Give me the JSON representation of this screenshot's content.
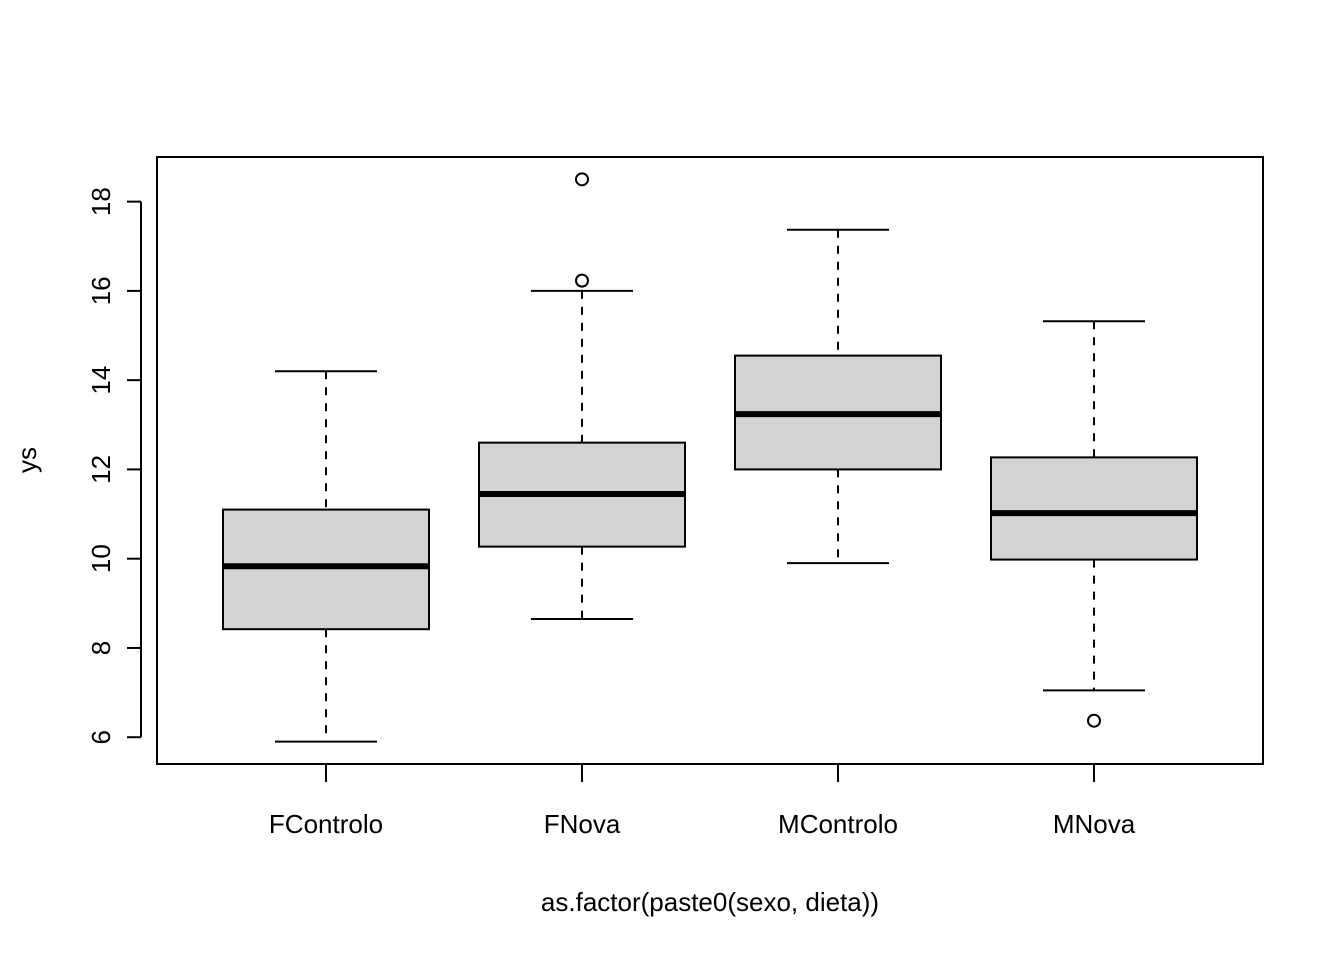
{
  "chart_data": {
    "type": "boxplot",
    "xlabel": "as.factor(paste0(sexo, dieta))",
    "ylabel": "ys",
    "ylim": [
      5.4,
      19.0
    ],
    "yticks": [
      "6",
      "8",
      "10",
      "12",
      "14",
      "16",
      "18"
    ],
    "grid": false,
    "box_fill": "#d3d3d3",
    "categories": [
      "FControlo",
      "FNova",
      "MControlo",
      "MNova"
    ],
    "boxes": [
      {
        "category": "FControlo",
        "whisker_low": 5.9,
        "q1": 8.42,
        "median": 9.83,
        "q3": 11.1,
        "whisker_high": 14.2,
        "outliers": []
      },
      {
        "category": "FNova",
        "whisker_low": 8.65,
        "q1": 10.27,
        "median": 11.45,
        "q3": 12.6,
        "whisker_high": 16.0,
        "outliers": [
          16.23,
          18.5
        ]
      },
      {
        "category": "MControlo",
        "whisker_low": 9.9,
        "q1": 12.0,
        "median": 13.24,
        "q3": 14.55,
        "whisker_high": 17.37,
        "outliers": []
      },
      {
        "category": "MNova",
        "whisker_low": 7.05,
        "q1": 9.98,
        "median": 11.02,
        "q3": 12.27,
        "whisker_high": 15.32,
        "outliers": [
          6.37
        ]
      }
    ]
  }
}
